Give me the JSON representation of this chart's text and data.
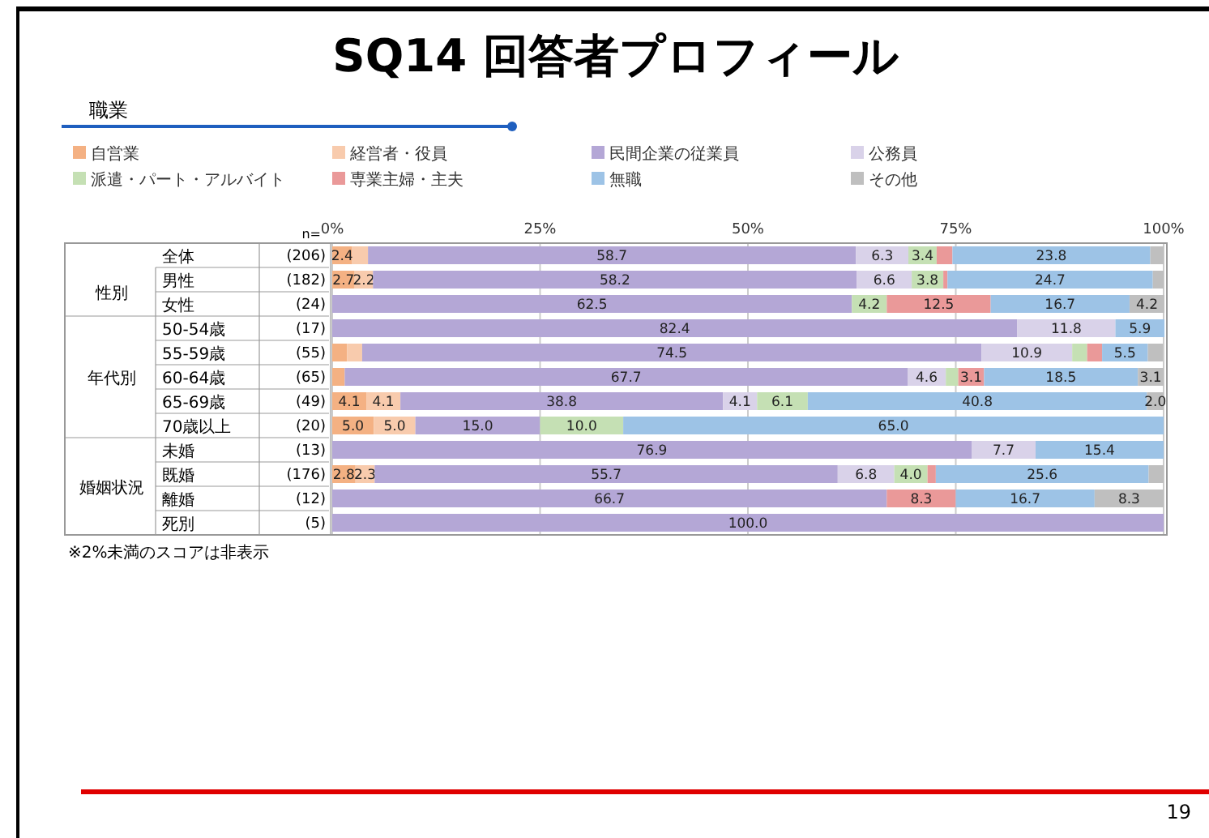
{
  "chart_data": {
    "type": "bar",
    "orientation": "horizontal",
    "stacked": true,
    "title": "SQ14 回答者プロフィール",
    "subtitle": "職業",
    "categories": [
      "全体",
      "男性",
      "女性",
      "50-54歳",
      "55-59歳",
      "60-64歳",
      "65-69歳",
      "70歳以上",
      "未婚",
      "既婚",
      "離婚",
      "死別"
    ],
    "xlim": [
      0,
      100
    ],
    "xticks": [
      {
        "value": 0,
        "label": "0%"
      },
      {
        "value": 25,
        "label": "25%"
      },
      {
        "value": 50,
        "label": "50%"
      },
      {
        "value": 75,
        "label": "75%"
      },
      {
        "value": 100,
        "label": "100%"
      }
    ],
    "grid": "x",
    "legend": "top",
    "series": [
      {
        "name": "自営業",
        "color": "#f4b183",
        "values": [
          2.4,
          2.7,
          0,
          0,
          1.8,
          1.5,
          4.1,
          5.0,
          0,
          2.8,
          0,
          0
        ],
        "value_labels": [
          "2.4",
          "2.7",
          null,
          null,
          null,
          null,
          "4.1",
          "5.0",
          null,
          "2.8",
          null,
          null
        ]
      },
      {
        "name": "経営者・役員",
        "color": "#f8cbad",
        "values": [
          1.9,
          2.2,
          0,
          0,
          1.8,
          0,
          4.1,
          5.0,
          0,
          2.3,
          0,
          0
        ],
        "value_labels": [
          null,
          "2.2",
          null,
          null,
          null,
          null,
          "4.1",
          "5.0",
          null,
          "2.3",
          null,
          null
        ]
      },
      {
        "name": "民間企業の従業員",
        "color": "#b4a7d6",
        "values": [
          58.7,
          58.2,
          62.5,
          82.4,
          74.5,
          67.7,
          38.8,
          15.0,
          76.9,
          55.7,
          66.7,
          100.0
        ],
        "value_labels": [
          "58.7",
          "58.2",
          "62.5",
          "82.4",
          "74.5",
          "67.7",
          "38.8",
          "15.0",
          "76.9",
          "55.7",
          "66.7",
          "100.0"
        ]
      },
      {
        "name": "公務員",
        "color": "#d9d2e9",
        "values": [
          6.3,
          6.6,
          0,
          11.8,
          10.9,
          4.6,
          4.1,
          0,
          7.7,
          6.8,
          0,
          0
        ],
        "value_labels": [
          "6.3",
          "6.6",
          null,
          "11.8",
          "10.9",
          "4.6",
          "4.1",
          null,
          "7.7",
          "6.8",
          null,
          null
        ]
      },
      {
        "name": "派遣・パート・アルバイト",
        "color": "#c5e0b4",
        "values": [
          3.4,
          3.8,
          4.2,
          0,
          1.8,
          1.5,
          6.1,
          10.0,
          0,
          4.0,
          0,
          0
        ],
        "value_labels": [
          "3.4",
          "3.8",
          "4.2",
          null,
          null,
          null,
          "6.1",
          "10.0",
          null,
          "4.0",
          null,
          null
        ]
      },
      {
        "name": "専業主婦・主夫",
        "color": "#ea9999",
        "values": [
          1.9,
          0.5,
          12.5,
          0,
          1.8,
          3.1,
          0,
          0,
          0,
          1.0,
          8.3,
          0
        ],
        "value_labels": [
          null,
          null,
          "12.5",
          null,
          null,
          "3.1",
          null,
          null,
          null,
          null,
          "8.3",
          null
        ]
      },
      {
        "name": "無職",
        "color": "#9dc3e6",
        "values": [
          23.8,
          24.7,
          16.7,
          5.9,
          5.5,
          18.5,
          40.8,
          65.0,
          15.4,
          25.6,
          16.7,
          0
        ],
        "value_labels": [
          "23.8",
          "24.7",
          "16.7",
          "5.9",
          "5.5",
          "18.5",
          "40.8",
          "65.0",
          "15.4",
          "25.6",
          "16.7",
          null
        ]
      },
      {
        "name": "その他",
        "color": "#bfbfbf",
        "values": [
          1.6,
          1.3,
          4.2,
          0,
          1.8,
          3.1,
          2.0,
          0,
          0,
          1.8,
          8.3,
          0
        ],
        "value_labels": [
          null,
          null,
          "4.2",
          null,
          null,
          "3.1",
          "2.0",
          null,
          null,
          null,
          "8.3",
          null
        ]
      }
    ],
    "annotations": [
      "n=",
      "(206)",
      "(182)",
      "(24)",
      "(17)",
      "(55)",
      "(65)",
      "(49)",
      "(20)",
      "(13)",
      "(176)",
      "(12)",
      "(5)",
      "性別",
      "年代別",
      "婚姻状況",
      "※2%未満のスコアは非表示",
      "19"
    ]
  }
}
